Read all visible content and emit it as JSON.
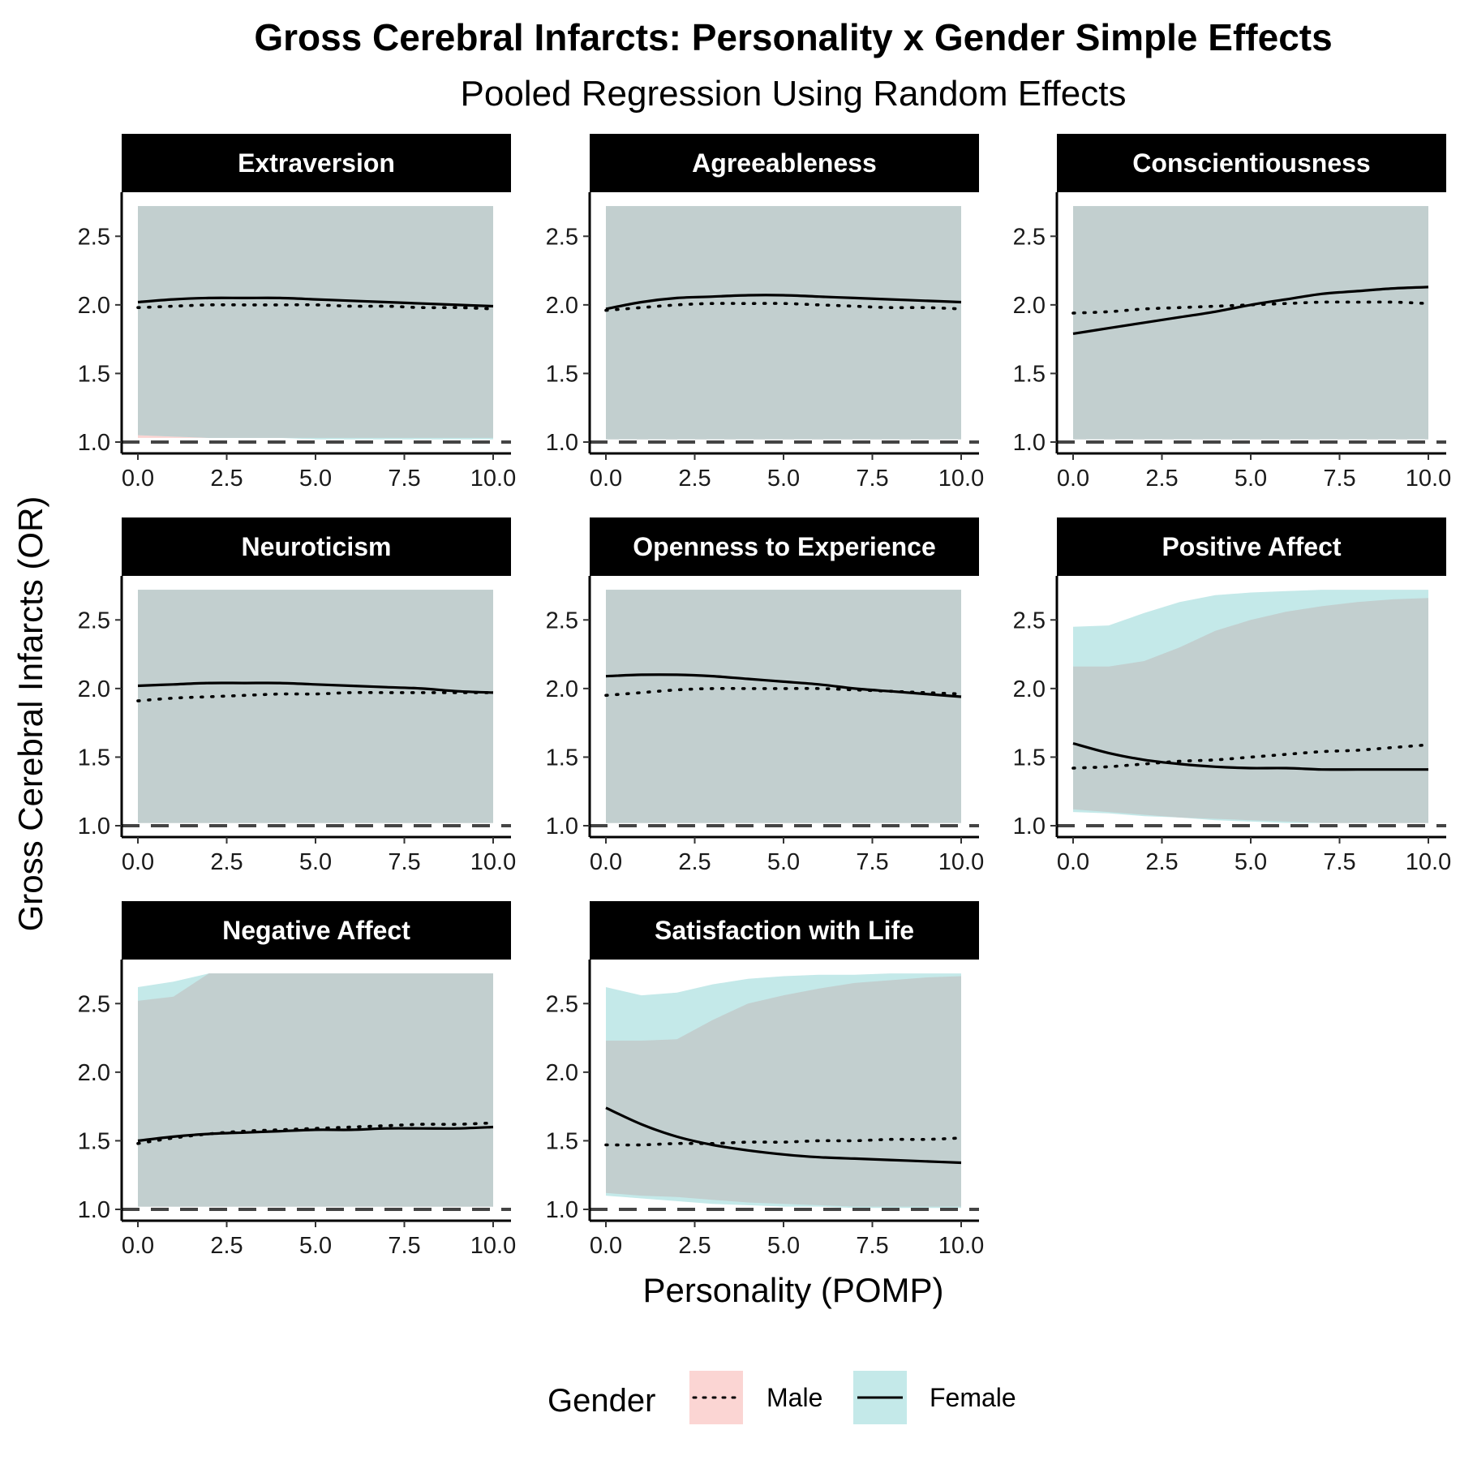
{
  "chart_data": {
    "type": "line",
    "title": "Gross Cerebral Infarcts: Personality x Gender Simple Effects",
    "subtitle": "Pooled Regression Using Random Effects",
    "xlabel": "Personality (POMP)",
    "ylabel": "Gross Cerebral Infarcts (OR)",
    "xlim": [
      0,
      10
    ],
    "ylim": [
      1.0,
      2.75
    ],
    "x_ticks": [
      "0.0",
      "2.5",
      "5.0",
      "7.5",
      "10.0"
    ],
    "y_ticks": [
      "1.0",
      "1.5",
      "2.0",
      "2.5"
    ],
    "reference_line": 1.0,
    "grid": false,
    "legend": {
      "title": "Gender",
      "position": "bottom",
      "items": [
        {
          "label": "Male",
          "line": "dotted",
          "fill": "#fbd5d3"
        },
        {
          "label": "Female",
          "line": "solid",
          "fill": "#c4e9e9"
        }
      ]
    },
    "colors": {
      "male_band": "#fbd5d3",
      "female_band": "#c4e9e9",
      "overlap_band": "#c2cfcf"
    },
    "x": [
      0,
      1,
      2,
      3,
      4,
      5,
      6,
      7,
      8,
      9,
      10
    ],
    "panels": [
      {
        "name": "Extraversion",
        "series": [
          {
            "name": "Male",
            "values": [
              1.98,
              1.99,
              2.0,
              2.0,
              2.0,
              2.0,
              1.99,
              1.99,
              1.98,
              1.98,
              1.97
            ],
            "lower": [
              1.03,
              1.03,
              1.03,
              1.03,
              1.03,
              1.03,
              1.03,
              1.03,
              1.03,
              1.03,
              1.03
            ],
            "upper": [
              2.72,
              2.72,
              2.72,
              2.72,
              2.72,
              2.72,
              2.72,
              2.72,
              2.72,
              2.72,
              2.72
            ]
          },
          {
            "name": "Female",
            "values": [
              2.02,
              2.04,
              2.05,
              2.05,
              2.05,
              2.04,
              2.03,
              2.02,
              2.01,
              2.0,
              1.99
            ],
            "lower": [
              1.05,
              1.04,
              1.03,
              1.03,
              1.03,
              1.02,
              1.02,
              1.02,
              1.02,
              1.02,
              1.02
            ],
            "upper": [
              2.72,
              2.72,
              2.72,
              2.72,
              2.72,
              2.72,
              2.72,
              2.72,
              2.72,
              2.72,
              2.72
            ]
          }
        ]
      },
      {
        "name": "Agreeableness",
        "series": [
          {
            "name": "Male",
            "values": [
              1.96,
              1.98,
              2.0,
              2.01,
              2.01,
              2.01,
              2.0,
              1.99,
              1.98,
              1.98,
              1.97
            ],
            "lower": [
              1.02,
              1.02,
              1.02,
              1.02,
              1.02,
              1.02,
              1.02,
              1.02,
              1.02,
              1.02,
              1.02
            ],
            "upper": [
              2.72,
              2.72,
              2.72,
              2.72,
              2.72,
              2.72,
              2.72,
              2.72,
              2.72,
              2.72,
              2.72
            ]
          },
          {
            "name": "Female",
            "values": [
              1.97,
              2.02,
              2.05,
              2.06,
              2.07,
              2.07,
              2.06,
              2.05,
              2.04,
              2.03,
              2.02
            ],
            "lower": [
              1.02,
              1.02,
              1.02,
              1.02,
              1.02,
              1.02,
              1.02,
              1.02,
              1.02,
              1.02,
              1.02
            ],
            "upper": [
              2.72,
              2.72,
              2.72,
              2.72,
              2.72,
              2.72,
              2.72,
              2.72,
              2.72,
              2.72,
              2.72
            ]
          }
        ]
      },
      {
        "name": "Conscientiousness",
        "series": [
          {
            "name": "Male",
            "values": [
              1.94,
              1.95,
              1.97,
              1.98,
              1.99,
              2.0,
              2.01,
              2.02,
              2.02,
              2.02,
              2.01
            ],
            "lower": [
              1.02,
              1.02,
              1.02,
              1.02,
              1.02,
              1.02,
              1.02,
              1.02,
              1.02,
              1.02,
              1.02
            ],
            "upper": [
              2.72,
              2.72,
              2.72,
              2.72,
              2.72,
              2.72,
              2.72,
              2.72,
              2.72,
              2.72,
              2.72
            ]
          },
          {
            "name": "Female",
            "values": [
              1.79,
              1.83,
              1.87,
              1.91,
              1.95,
              2.0,
              2.04,
              2.08,
              2.1,
              2.12,
              2.13
            ],
            "lower": [
              1.02,
              1.02,
              1.02,
              1.02,
              1.02,
              1.02,
              1.02,
              1.02,
              1.02,
              1.02,
              1.02
            ],
            "upper": [
              2.72,
              2.72,
              2.72,
              2.72,
              2.72,
              2.72,
              2.72,
              2.72,
              2.72,
              2.72,
              2.72
            ]
          }
        ]
      },
      {
        "name": "Neuroticism",
        "series": [
          {
            "name": "Male",
            "values": [
              1.91,
              1.93,
              1.94,
              1.95,
              1.96,
              1.96,
              1.97,
              1.97,
              1.97,
              1.97,
              1.97
            ],
            "lower": [
              1.02,
              1.02,
              1.02,
              1.02,
              1.02,
              1.02,
              1.02,
              1.02,
              1.02,
              1.02,
              1.02
            ],
            "upper": [
              2.72,
              2.72,
              2.72,
              2.72,
              2.72,
              2.72,
              2.72,
              2.72,
              2.72,
              2.72,
              2.72
            ]
          },
          {
            "name": "Female",
            "values": [
              2.02,
              2.03,
              2.04,
              2.04,
              2.04,
              2.03,
              2.02,
              2.01,
              2.0,
              1.98,
              1.97
            ],
            "lower": [
              1.02,
              1.02,
              1.02,
              1.02,
              1.02,
              1.02,
              1.02,
              1.02,
              1.02,
              1.02,
              1.02
            ],
            "upper": [
              2.72,
              2.72,
              2.72,
              2.72,
              2.72,
              2.72,
              2.72,
              2.72,
              2.72,
              2.72,
              2.72
            ]
          }
        ]
      },
      {
        "name": "Openness to Experience",
        "series": [
          {
            "name": "Male",
            "values": [
              1.95,
              1.97,
              1.99,
              2.0,
              2.0,
              2.0,
              2.0,
              1.99,
              1.98,
              1.97,
              1.96
            ],
            "lower": [
              1.02,
              1.02,
              1.02,
              1.02,
              1.02,
              1.02,
              1.02,
              1.02,
              1.02,
              1.02,
              1.02
            ],
            "upper": [
              2.72,
              2.72,
              2.72,
              2.72,
              2.72,
              2.72,
              2.72,
              2.72,
              2.72,
              2.72,
              2.72
            ]
          },
          {
            "name": "Female",
            "values": [
              2.09,
              2.1,
              2.1,
              2.09,
              2.07,
              2.05,
              2.03,
              2.0,
              1.98,
              1.96,
              1.94
            ],
            "lower": [
              1.02,
              1.02,
              1.02,
              1.02,
              1.02,
              1.02,
              1.02,
              1.02,
              1.02,
              1.02,
              1.02
            ],
            "upper": [
              2.72,
              2.72,
              2.72,
              2.72,
              2.72,
              2.72,
              2.72,
              2.72,
              2.72,
              2.72,
              2.72
            ]
          }
        ]
      },
      {
        "name": "Positive Affect",
        "series": [
          {
            "name": "Male",
            "values": [
              1.42,
              1.43,
              1.45,
              1.47,
              1.48,
              1.5,
              1.52,
              1.54,
              1.55,
              1.57,
              1.59
            ],
            "lower": [
              1.12,
              1.1,
              1.08,
              1.06,
              1.05,
              1.04,
              1.03,
              1.02,
              1.02,
              1.02,
              1.02
            ],
            "upper": [
              2.16,
              2.16,
              2.2,
              2.3,
              2.42,
              2.5,
              2.56,
              2.6,
              2.63,
              2.65,
              2.66
            ]
          },
          {
            "name": "Female",
            "values": [
              1.6,
              1.53,
              1.48,
              1.45,
              1.43,
              1.42,
              1.42,
              1.41,
              1.41,
              1.41,
              1.41
            ],
            "lower": [
              1.1,
              1.09,
              1.07,
              1.06,
              1.04,
              1.03,
              1.02,
              1.02,
              1.02,
              1.02,
              1.02
            ],
            "upper": [
              2.45,
              2.46,
              2.55,
              2.63,
              2.68,
              2.7,
              2.71,
              2.72,
              2.72,
              2.72,
              2.72
            ]
          }
        ]
      },
      {
        "name": "Negative Affect",
        "series": [
          {
            "name": "Male",
            "values": [
              1.48,
              1.52,
              1.55,
              1.57,
              1.58,
              1.59,
              1.6,
              1.61,
              1.62,
              1.62,
              1.63
            ],
            "lower": [
              1.02,
              1.02,
              1.02,
              1.02,
              1.02,
              1.02,
              1.02,
              1.02,
              1.02,
              1.02,
              1.02
            ],
            "upper": [
              2.52,
              2.55,
              2.72,
              2.72,
              2.72,
              2.72,
              2.72,
              2.72,
              2.72,
              2.72,
              2.72
            ]
          },
          {
            "name": "Female",
            "values": [
              1.5,
              1.53,
              1.55,
              1.56,
              1.57,
              1.58,
              1.58,
              1.59,
              1.59,
              1.59,
              1.6
            ],
            "lower": [
              1.02,
              1.02,
              1.02,
              1.02,
              1.02,
              1.02,
              1.02,
              1.02,
              1.02,
              1.02,
              1.02
            ],
            "upper": [
              2.62,
              2.66,
              2.72,
              2.72,
              2.72,
              2.72,
              2.72,
              2.72,
              2.72,
              2.72,
              2.72
            ]
          }
        ]
      },
      {
        "name": "Satisfaction with Life",
        "series": [
          {
            "name": "Male",
            "values": [
              1.47,
              1.47,
              1.48,
              1.48,
              1.49,
              1.49,
              1.5,
              1.5,
              1.51,
              1.51,
              1.52
            ],
            "lower": [
              1.12,
              1.1,
              1.09,
              1.07,
              1.05,
              1.04,
              1.03,
              1.02,
              1.02,
              1.02,
              1.02
            ],
            "upper": [
              2.23,
              2.23,
              2.24,
              2.38,
              2.5,
              2.56,
              2.61,
              2.65,
              2.67,
              2.69,
              2.7
            ]
          },
          {
            "name": "Female",
            "values": [
              1.74,
              1.62,
              1.53,
              1.47,
              1.43,
              1.4,
              1.38,
              1.37,
              1.36,
              1.35,
              1.34
            ],
            "lower": [
              1.1,
              1.08,
              1.06,
              1.04,
              1.03,
              1.02,
              1.02,
              1.01,
              1.01,
              1.01,
              1.01
            ],
            "upper": [
              2.62,
              2.56,
              2.58,
              2.64,
              2.68,
              2.7,
              2.71,
              2.71,
              2.72,
              2.72,
              2.72
            ]
          }
        ]
      }
    ]
  }
}
